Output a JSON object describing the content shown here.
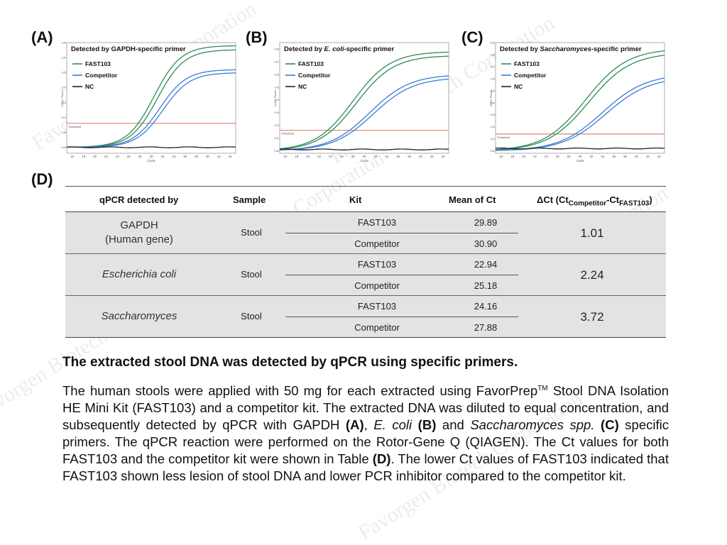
{
  "panels": [
    {
      "label": "(A)",
      "title_prefix": "Detected by ",
      "title_em": "GAPDH",
      "title_suffix": "-specific primer",
      "title_em_italic": false,
      "legend": [
        "FAST103",
        "Competitor",
        "NC"
      ],
      "threshold_label": "Threshold",
      "y_axis_label": "Norm. Fluoro.",
      "x_axis_label": "Cycle",
      "x_ticks": [
        "16",
        "18",
        "20",
        "22",
        "24",
        "26",
        "28",
        "30",
        "32",
        "34",
        "36",
        "38",
        "40",
        "42",
        "44"
      ],
      "y_ticks": [
        "0.00",
        "0.05",
        "0.10",
        "0.15",
        "0.20",
        "0.25",
        "0.30",
        "0.35"
      ]
    },
    {
      "label": "(B)",
      "title_prefix": "Detected by ",
      "title_em": "E. coli",
      "title_suffix": "-specific primer",
      "title_em_italic": true,
      "legend": [
        "FAST103",
        "Competitor",
        "NC"
      ],
      "threshold_label": "Threshold",
      "y_axis_label": "Norm. Fluoro.",
      "x_axis_label": "Cycle",
      "x_ticks": [
        "16",
        "18",
        "20",
        "22",
        "24",
        "26",
        "28",
        "30",
        "32",
        "34",
        "36",
        "38",
        "40",
        "42",
        "44"
      ],
      "y_ticks": [
        "0.00",
        "0.01",
        "0.02",
        "0.03",
        "0.04",
        "0.05",
        "0.06",
        "0.07",
        "0.08"
      ]
    },
    {
      "label": "(C)",
      "title_prefix": "Detected by ",
      "title_em": "Saccharomyces",
      "title_suffix": "-specific primer",
      "title_em_italic": true,
      "legend": [
        "FAST103",
        "Competitor",
        "NC"
      ],
      "threshold_label": "Threshold",
      "y_axis_label": "Norm. Fluoro.",
      "x_axis_label": "Cycle",
      "x_ticks": [
        "16",
        "18",
        "20",
        "22",
        "24",
        "26",
        "28",
        "30",
        "32",
        "34",
        "36",
        "38",
        "40",
        "42",
        "44"
      ],
      "y_ticks": [
        "0.00",
        "0.01",
        "0.02",
        "0.03",
        "0.04",
        "0.05",
        "0.06",
        "0.07",
        "0.08",
        "0.09"
      ]
    }
  ],
  "colors": {
    "fast103": "#2e8b57",
    "competitor": "#3a7bd5",
    "nc": "#222222",
    "threshold": "#d9634a",
    "table_bg": "#e3e3e3"
  },
  "chart_data": [
    {
      "type": "line",
      "title": "Detected by GAPDH-specific primer",
      "xlabel": "Cycle",
      "ylabel": "Norm. Fluoro.",
      "xlim": [
        15,
        45
      ],
      "ylim": [
        -0.02,
        0.35
      ],
      "threshold": 0.08,
      "legend_position": "top-left",
      "series": [
        {
          "name": "FAST103",
          "midpoint": 30.5,
          "plateau": 0.34,
          "steep": 0.42,
          "replicates": 2
        },
        {
          "name": "Competitor",
          "midpoint": 31.5,
          "plateau": 0.26,
          "steep": 0.42,
          "replicates": 2
        },
        {
          "name": "NC",
          "flat": 0.0
        }
      ]
    },
    {
      "type": "line",
      "title": "Detected by E. coli-specific primer",
      "xlabel": "Cycle",
      "ylabel": "Norm. Fluoro.",
      "xlim": [
        15,
        45
      ],
      "ylim": [
        -0.002,
        0.085
      ],
      "threshold": 0.016,
      "legend_position": "top-left",
      "series": [
        {
          "name": "FAST103",
          "midpoint": 28.0,
          "plateau": 0.078,
          "steep": 0.3,
          "replicates": 2
        },
        {
          "name": "Competitor",
          "midpoint": 31.0,
          "plateau": 0.06,
          "steep": 0.28,
          "replicates": 2
        },
        {
          "name": "NC",
          "flat": 0.001
        }
      ]
    },
    {
      "type": "line",
      "title": "Detected by Saccharomyces-specific primer",
      "xlabel": "Cycle",
      "ylabel": "Norm. Fluoro.",
      "xlim": [
        15,
        45
      ],
      "ylim": [
        -0.002,
        0.09
      ],
      "threshold": 0.014,
      "legend_position": "top-left",
      "series": [
        {
          "name": "FAST103",
          "midpoint": 31.0,
          "plateau": 0.085,
          "steep": 0.27,
          "replicates": 2
        },
        {
          "name": "Competitor",
          "midpoint": 34.0,
          "plateau": 0.064,
          "steep": 0.26,
          "replicates": 2
        },
        {
          "name": "NC",
          "flat": 0.002
        }
      ]
    },
    {
      "type": "table",
      "label": "(D)",
      "columns": [
        "qPCR detected by",
        "Sample",
        "Kit",
        "Mean of Ct",
        "ΔCt (Ct",
        "Competitor",
        "-Ct",
        "FAST103",
        ")"
      ],
      "rows": [
        {
          "target_line1": "GAPDH",
          "target_line2": "(Human gene)",
          "italic": false,
          "sample": "Stool",
          "kit1": "FAST103",
          "ct1": "29.89",
          "kit2": "Competitor",
          "ct2": "30.90",
          "delta": "1.01"
        },
        {
          "target_line1": "Escherichia coli",
          "target_line2": "",
          "italic": true,
          "sample": "Stool",
          "kit1": "FAST103",
          "ct1": "22.94",
          "kit2": "Competitor",
          "ct2": "25.18",
          "delta": "2.24"
        },
        {
          "target_line1": "Saccharomyces",
          "target_line2": "",
          "italic": true,
          "sample": "Stool",
          "kit1": "FAST103",
          "ct1": "24.16",
          "kit2": "Competitor",
          "ct2": "27.88",
          "delta": "3.72"
        }
      ]
    }
  ],
  "caption": {
    "title": "The extracted stool DNA was detected by qPCR using specific primers.",
    "p1": "The human stools were applied with 50 mg for each extracted using FavorPrep",
    "tm": "TM",
    "p2": " Stool DNA Isolation HE Mini Kit (FAST103) and a competitor kit. The extracted DNA was diluted to equal concentration, and subsequently detected by qPCR with GAPDH ",
    "a": "(A)",
    "p3": ", ",
    "ecoli": "E. coli",
    "p4": " ",
    "b": "(B)",
    "p5": " and ",
    "sacc": "Saccharomyces spp.",
    "p6": " ",
    "c": "(C)",
    "p7": " specific primers. The qPCR reaction were performed on the Rotor-Gene Q (QIAGEN). The Ct values for both FAST103 and the competitor kit were shown in Table ",
    "d": "(D)",
    "p8": ". The lower Ct values of FAST103 indicated that FAST103 shown less lesion of stool DNA and lower PCR inhibitor compared to the competitor kit."
  },
  "watermark": "Favorgen Biotech Corporation"
}
